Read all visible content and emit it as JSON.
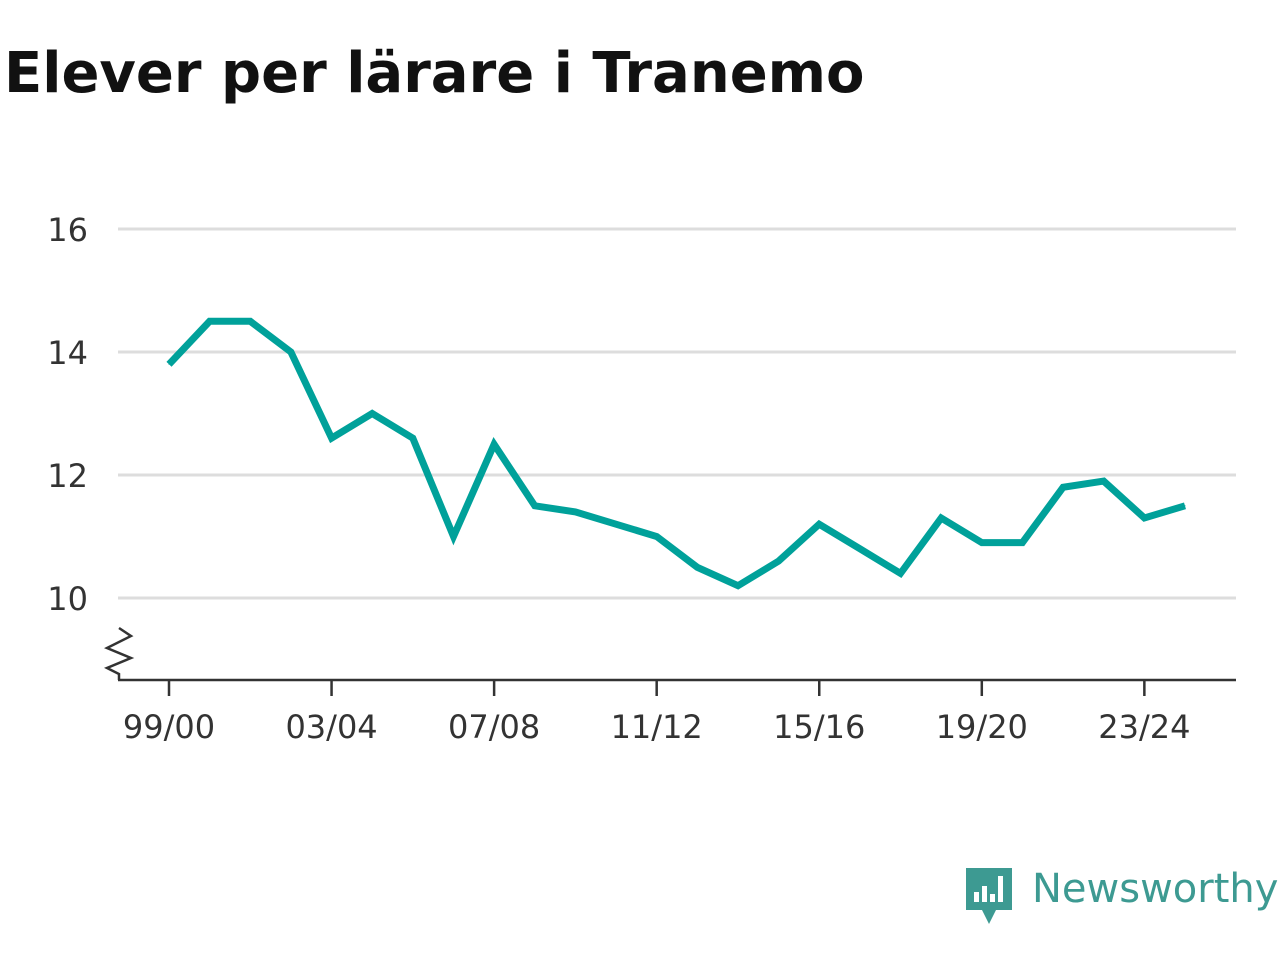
{
  "chart_data": {
    "type": "line",
    "title": "Elever per lärare i Tranemo",
    "xlabel": "",
    "ylabel": "",
    "x": [
      "99/00",
      "00/01",
      "01/02",
      "02/03",
      "03/04",
      "04/05",
      "05/06",
      "06/07",
      "07/08",
      "08/09",
      "09/10",
      "10/11",
      "11/12",
      "12/13",
      "13/14",
      "14/15",
      "15/16",
      "16/17",
      "17/18",
      "18/19",
      "19/20",
      "20/21",
      "21/22",
      "22/23",
      "23/24",
      "24/25"
    ],
    "x_tick_labels": [
      "99/00",
      "03/04",
      "07/08",
      "11/12",
      "15/16",
      "19/20",
      "23/24"
    ],
    "series": [
      {
        "values": [
          13.8,
          14.5,
          14.5,
          14.0,
          12.6,
          13.0,
          12.6,
          11.0,
          12.5,
          11.5,
          11.4,
          11.2,
          11.0,
          10.5,
          10.2,
          10.6,
          11.2,
          10.8,
          10.4,
          11.3,
          10.9,
          10.9,
          11.8,
          11.9,
          11.3,
          11.5
        ],
        "color": "#00a19a"
      }
    ],
    "y_ticks": [
      10,
      12,
      14,
      16
    ],
    "ylim": [
      8.7,
      16
    ],
    "y_axis_break": true,
    "grid": true
  },
  "brand": {
    "name": "Newsworthy",
    "icon": "newsworthy-logo-icon",
    "color": "#3d9a92"
  }
}
